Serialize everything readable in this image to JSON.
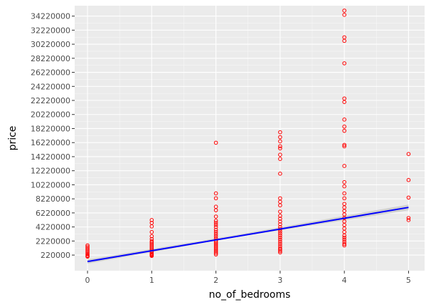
{
  "chart_data": {
    "type": "scatter",
    "xlabel": "no_of_bedrooms",
    "ylabel": "price",
    "xlim": [
      -0.2,
      5.25
    ],
    "ylim": [
      -2000000,
      35700000
    ],
    "x_ticks": [
      0,
      1,
      2,
      3,
      4,
      5
    ],
    "x_tick_labels": [
      "0",
      "1",
      "2",
      "3",
      "4",
      "5"
    ],
    "y_ticks": [
      220000,
      2220000,
      4220000,
      6220000,
      8220000,
      10220000,
      12220000,
      14220000,
      16220000,
      18220000,
      20220000,
      22220000,
      24220000,
      26220000,
      28220000,
      30220000,
      32220000,
      34220000
    ],
    "y_tick_labels": [
      "220000",
      "2220000",
      "4220000",
      "6220000",
      "8220000",
      "10220000",
      "12220000",
      "14220000",
      "16220000",
      "18220000",
      "20220000",
      "22220000",
      "24220000",
      "26220000",
      "28220000",
      "30220000",
      32220000,
      "34220000"
    ],
    "grid": true,
    "legend": "none",
    "colors": {
      "panel": "#ebebeb",
      "grid_major": "#ffffff",
      "points": "#ff0000",
      "fit_line": "#0000ff",
      "confidence_band": "#999999"
    },
    "points": [
      {
        "x": 0,
        "y": [
          1400000,
          1200000,
          1000000,
          800000,
          600000,
          400000,
          250000,
          100000,
          0,
          1600000
        ]
      },
      {
        "x": 1,
        "y": [
          5200000,
          4800000,
          4300000,
          3500000,
          2900000,
          2500000,
          2200000,
          2000000,
          1800000,
          1600000,
          1400000,
          1200000,
          1000000,
          800000,
          600000,
          400000,
          300000,
          200000,
          100000
        ]
      },
      {
        "x": 2,
        "y": [
          16200000,
          9000000,
          8300000,
          7100000,
          6600000,
          5700000,
          5100000,
          4800000,
          4500000,
          4200000,
          3800000,
          3500000,
          3200000,
          2900000,
          2600000,
          2300000,
          2100000,
          1900000,
          1700000,
          1500000,
          1300000,
          1100000,
          900000,
          700000,
          500000,
          300000
        ]
      },
      {
        "x": 3,
        "y": [
          17700000,
          17000000,
          16400000,
          15700000,
          15400000,
          14500000,
          13900000,
          11800000,
          8300000,
          7800000,
          7300000,
          6400000,
          5800000,
          5400000,
          5000000,
          4600000,
          4200000,
          3900000,
          3600000,
          3300000,
          3000000,
          2700000,
          2400000,
          2100000,
          1800000,
          1500000,
          1200000,
          1000000,
          800000,
          600000
        ]
      },
      {
        "x": 4,
        "y": [
          35000000,
          34400000,
          31200000,
          30700000,
          27500000,
          22500000,
          22000000,
          19500000,
          18500000,
          17900000,
          15900000,
          15700000,
          12900000,
          10600000,
          10000000,
          9000000,
          8300000,
          7500000,
          7000000,
          6500000,
          6000000,
          5500000,
          5000000,
          4500000,
          4000000,
          3500000,
          3000000,
          2700000,
          2400000,
          2100000,
          1800000,
          1600000
        ]
      },
      {
        "x": 5,
        "y": [
          14600000,
          10900000,
          8400000,
          5500000,
          5200000
        ]
      }
    ],
    "fit_line": {
      "x": [
        0,
        5
      ],
      "y": [
        -700000,
        7000000
      ]
    },
    "confidence_band": {
      "x": [
        0,
        2.2,
        5
      ],
      "lower": [
        -1000000,
        2600000,
        6600000
      ],
      "upper": [
        -400000,
        2900000,
        7400000
      ]
    }
  }
}
